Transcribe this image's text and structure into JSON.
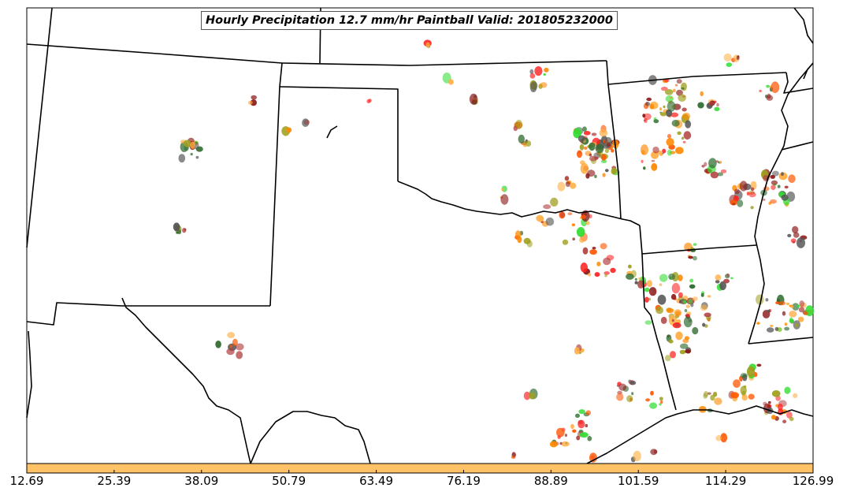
{
  "map": {
    "title": "Hourly Precipitation 12.7 mm/hr Paintball Valid: 201805232000"
  },
  "colorbar": {
    "color": "#ffc266",
    "ticks": [
      "12.69",
      "25.39",
      "38.09",
      "50.79",
      "63.49",
      "76.19",
      "88.89",
      "101.59",
      "114.29",
      "126.99"
    ]
  },
  "palette": {
    "member_colors": [
      "#ff2222",
      "#ff8800",
      "#ffad40",
      "#33dd33",
      "#2e6b2e",
      "#a0a020",
      "#8b1a1a",
      "#555555",
      "#ff5500",
      "#b04040"
    ]
  }
}
